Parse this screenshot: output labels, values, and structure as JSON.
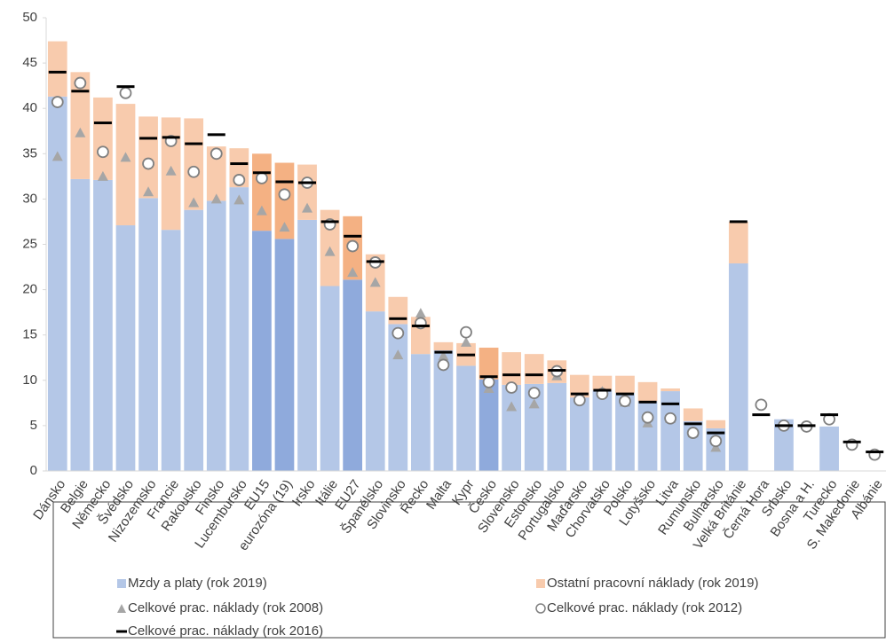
{
  "chart_data": {
    "type": "bar",
    "categories": [
      "Dánsko",
      "Belgie",
      "Německo",
      "Švédsko",
      "Nizozemsko",
      "Francie",
      "Rakousko",
      "Finsko",
      "Lucembursko",
      "EU15",
      "eurozóna (19)",
      "Irsko",
      "Itálie",
      "EU27",
      "Španělsko",
      "Slovinsko",
      "Řecko",
      "Malta",
      "Kypr",
      "Česko",
      "Slovensko",
      "Estonsko",
      "Portugalsko",
      "Maďarsko",
      "Chorvatsko",
      "Polsko",
      "Lotyšsko",
      "Litva",
      "Rumunsko",
      "Bulharsko",
      "Velká Británie",
      "Černá Hora",
      "Srbsko",
      "Bosna a H.",
      "Turecko",
      "S. Makedonie",
      "Albánie"
    ],
    "series": [
      {
        "name": "Mzdy a platy (rok 2019)",
        "mark": "bar",
        "color": "#b4c7e7",
        "colors": [
          "#b4c7e7",
          "#b4c7e7",
          "#b4c7e7",
          "#b4c7e7",
          "#b4c7e7",
          "#b4c7e7",
          "#b4c7e7",
          "#b4c7e7",
          "#b4c7e7",
          "#8faadc",
          "#8faadc",
          "#b4c7e7",
          "#b4c7e7",
          "#8faadc",
          "#b4c7e7",
          "#b4c7e7",
          "#b4c7e7",
          "#b4c7e7",
          "#b4c7e7",
          "#8faadc",
          "#b4c7e7",
          "#b4c7e7",
          "#b4c7e7",
          "#b4c7e7",
          "#b4c7e7",
          "#b4c7e7",
          "#b4c7e7",
          "#b4c7e7",
          "#b4c7e7",
          "#b4c7e7",
          "#b4c7e7",
          "#b4c7e7",
          "#b4c7e7",
          "#b4c7e7",
          "#b4c7e7",
          "#b4c7e7",
          "#b4c7e7"
        ],
        "values": [
          41.3,
          32.2,
          32.1,
          27.1,
          30.1,
          26.6,
          28.8,
          29.8,
          31.3,
          26.5,
          25.6,
          27.7,
          20.4,
          21.1,
          17.6,
          16.2,
          12.9,
          13.3,
          11.6,
          10.1,
          9.5,
          9.6,
          9.7,
          8.1,
          8.9,
          8.6,
          7.7,
          8.8,
          5.5,
          4.7,
          22.9,
          null,
          5.7,
          null,
          4.9,
          null,
          null
        ]
      },
      {
        "name": "Ostatní pracovní náklady (rok 2019)",
        "mark": "bar",
        "color": "#f8cbad",
        "colors": [
          "#f8cbad",
          "#f8cbad",
          "#f8cbad",
          "#f8cbad",
          "#f8cbad",
          "#f8cbad",
          "#f8cbad",
          "#f8cbad",
          "#f8cbad",
          "#f4b183",
          "#f4b183",
          "#f8cbad",
          "#f8cbad",
          "#f4b183",
          "#f8cbad",
          "#f8cbad",
          "#f8cbad",
          "#f8cbad",
          "#f8cbad",
          "#f4b183",
          "#f8cbad",
          "#f8cbad",
          "#f8cbad",
          "#f8cbad",
          "#f8cbad",
          "#f8cbad",
          "#f8cbad",
          "#f8cbad",
          "#f8cbad",
          "#f8cbad",
          "#f8cbad",
          "#f8cbad",
          "#f8cbad",
          "#f8cbad",
          "#f8cbad",
          "#f8cbad",
          "#f8cbad"
        ],
        "values": [
          6.1,
          11.8,
          9.1,
          13.4,
          9.0,
          12.4,
          10.1,
          6.0,
          4.3,
          8.5,
          8.4,
          6.1,
          8.4,
          7.0,
          6.3,
          3.0,
          4.1,
          0.9,
          2.5,
          3.5,
          3.6,
          3.3,
          2.5,
          2.5,
          1.6,
          1.9,
          2.1,
          0.3,
          1.4,
          0.9,
          4.6,
          null,
          null,
          null,
          null,
          null,
          null
        ]
      },
      {
        "name": "Celkové prac. náklady (rok 2008)",
        "mark": "triangle",
        "color": "#a6a6a6",
        "values": [
          34.7,
          37.3,
          32.5,
          34.6,
          30.8,
          33.1,
          29.6,
          30.0,
          29.9,
          28.7,
          26.9,
          29.0,
          24.2,
          21.9,
          20.8,
          12.8,
          17.4,
          12.7,
          14.2,
          9.1,
          7.1,
          7.4,
          10.5,
          7.9,
          8.8,
          7.6,
          5.3,
          5.8,
          4.2,
          2.6,
          null,
          null,
          null,
          null,
          null,
          null,
          null
        ]
      },
      {
        "name": "Celkové prac. náklady (rok 2012)",
        "mark": "circle",
        "color": "#808080",
        "values": [
          40.7,
          42.8,
          35.2,
          41.7,
          33.9,
          36.4,
          33.0,
          35.0,
          32.1,
          32.3,
          30.5,
          31.8,
          27.2,
          24.8,
          23.0,
          15.2,
          16.3,
          11.7,
          15.3,
          9.8,
          9.2,
          8.6,
          11.0,
          7.8,
          8.5,
          7.7,
          5.9,
          5.8,
          4.2,
          3.3,
          null,
          7.3,
          5.0,
          4.9,
          5.7,
          2.9,
          1.8
        ]
      },
      {
        "name": "Celkové prac. náklady (rok 2016)",
        "mark": "dash",
        "color": "#000000",
        "values": [
          44.0,
          41.9,
          38.4,
          42.4,
          36.7,
          36.8,
          36.1,
          37.1,
          33.9,
          32.9,
          31.9,
          31.8,
          27.5,
          25.9,
          23.1,
          16.8,
          16.0,
          13.1,
          12.8,
          10.4,
          10.6,
          10.6,
          11.1,
          8.5,
          8.9,
          8.5,
          7.6,
          7.4,
          5.2,
          4.2,
          27.5,
          6.2,
          5.0,
          5.0,
          6.2,
          3.2,
          2.1
        ]
      }
    ],
    "ylim": [
      0,
      50
    ],
    "yticks": [
      0,
      5,
      10,
      15,
      20,
      25,
      30,
      35,
      40,
      45,
      50
    ],
    "grid": false
  }
}
